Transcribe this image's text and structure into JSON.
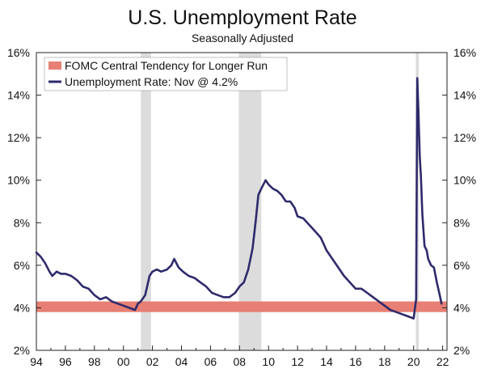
{
  "chart_data": {
    "type": "line",
    "title": "U.S. Unemployment Rate",
    "subtitle": "Seasonally Adjusted",
    "xlabel": "",
    "ylabel": "",
    "xlim": [
      1994,
      2022.3
    ],
    "ylim": [
      2,
      16
    ],
    "x_ticks": [
      1994,
      1996,
      1998,
      2000,
      2002,
      2004,
      2006,
      2008,
      2010,
      2012,
      2014,
      2016,
      2018,
      2020,
      2022
    ],
    "x_tick_labels": [
      "94",
      "96",
      "98",
      "00",
      "02",
      "04",
      "06",
      "08",
      "10",
      "12",
      "14",
      "16",
      "18",
      "20",
      "22"
    ],
    "y_ticks": [
      2,
      4,
      6,
      8,
      10,
      12,
      14,
      16
    ],
    "y_tick_labels": [
      "2%",
      "4%",
      "6%",
      "8%",
      "10%",
      "12%",
      "14%",
      "16%"
    ],
    "recessions": [
      [
        2001.2,
        2001.9
      ],
      [
        2007.95,
        2009.5
      ],
      [
        2020.15,
        2020.35
      ]
    ],
    "band": {
      "name": "FOMC Central Tendency for Longer Run",
      "low": 3.8,
      "high": 4.3,
      "color": "#e77f74"
    },
    "series": [
      {
        "name": "Unemployment Rate: Nov @ 4.2%",
        "color": "#2f2a6b",
        "x": [
          1994.0,
          1994.3,
          1994.6,
          1994.9,
          1995.1,
          1995.4,
          1995.7,
          1996.0,
          1996.4,
          1996.8,
          1997.2,
          1997.6,
          1998.0,
          1998.4,
          1998.8,
          1999.2,
          1999.6,
          2000.0,
          2000.4,
          2000.8,
          2001.0,
          2001.2,
          2001.5,
          2001.8,
          2002.0,
          2002.3,
          2002.6,
          2003.0,
          2003.3,
          2003.5,
          2003.8,
          2004.1,
          2004.5,
          2004.9,
          2005.3,
          2005.7,
          2006.1,
          2006.5,
          2006.9,
          2007.3,
          2007.7,
          2008.0,
          2008.3,
          2008.6,
          2008.9,
          2009.1,
          2009.3,
          2009.5,
          2009.8,
          2010.0,
          2010.3,
          2010.6,
          2010.9,
          2011.2,
          2011.5,
          2011.8,
          2012.0,
          2012.4,
          2012.8,
          2013.2,
          2013.6,
          2014.0,
          2014.4,
          2014.8,
          2015.2,
          2015.6,
          2016.0,
          2016.4,
          2016.8,
          2017.2,
          2017.6,
          2018.0,
          2018.4,
          2018.8,
          2019.2,
          2019.6,
          2020.0,
          2020.17,
          2020.25,
          2020.33,
          2020.42,
          2020.5,
          2020.6,
          2020.75,
          2020.9,
          2021.0,
          2021.2,
          2021.4,
          2021.6,
          2021.8,
          2021.92
        ],
        "values": [
          6.6,
          6.4,
          6.1,
          5.7,
          5.5,
          5.7,
          5.6,
          5.6,
          5.5,
          5.3,
          5.0,
          4.9,
          4.6,
          4.4,
          4.5,
          4.3,
          4.2,
          4.1,
          4.0,
          3.9,
          4.2,
          4.3,
          4.6,
          5.5,
          5.7,
          5.8,
          5.7,
          5.8,
          6.0,
          6.3,
          5.9,
          5.7,
          5.5,
          5.4,
          5.2,
          5.0,
          4.7,
          4.6,
          4.5,
          4.5,
          4.7,
          5.0,
          5.2,
          5.8,
          6.8,
          8.0,
          9.3,
          9.6,
          10.0,
          9.8,
          9.6,
          9.5,
          9.3,
          9.0,
          9.0,
          8.7,
          8.3,
          8.2,
          7.9,
          7.6,
          7.3,
          6.7,
          6.3,
          5.9,
          5.5,
          5.2,
          4.9,
          4.9,
          4.7,
          4.5,
          4.3,
          4.1,
          3.9,
          3.8,
          3.7,
          3.6,
          3.5,
          4.4,
          14.8,
          13.3,
          11.1,
          10.2,
          8.4,
          6.9,
          6.7,
          6.3,
          6.0,
          5.9,
          5.2,
          4.6,
          4.2
        ]
      }
    ]
  }
}
